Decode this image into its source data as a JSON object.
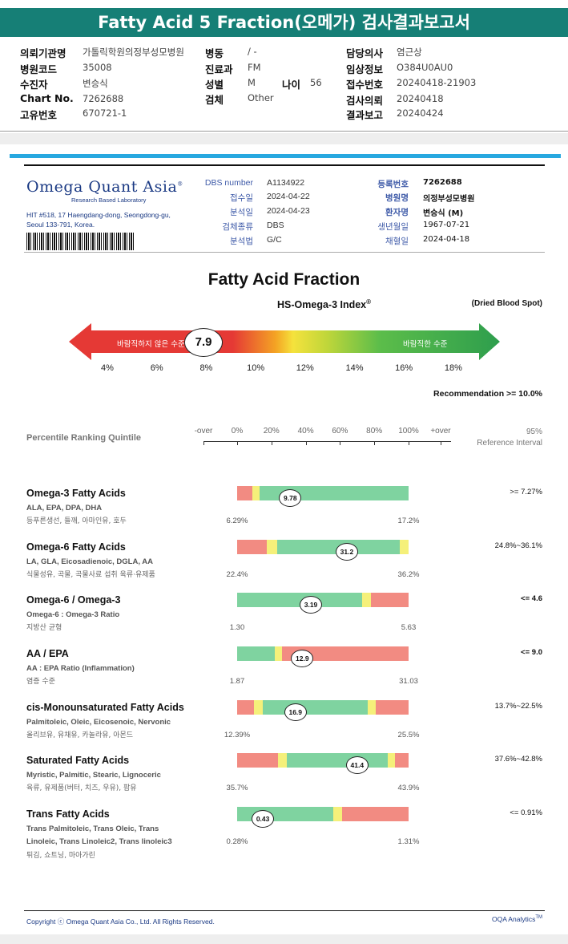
{
  "report_title": "Fatty Acid 5 Fraction(오메가) 검사결과보고서",
  "info": {
    "hospital_label": "의뢰기관명",
    "hospital_value": "가톨릭학원의정부성모병원",
    "code_label": "병원코드",
    "code_value": "35008",
    "patient_label": "수진자",
    "patient_value": "변승식",
    "chart_label": "Chart No.",
    "chart_value": "7262688",
    "id_label": "고유번호",
    "id_value": "670721-1",
    "ward_label": "병동",
    "ward_value": "/ -",
    "dept_label": "진료과",
    "dept_value": "FM",
    "sex_label": "성별",
    "sex_value": "M",
    "age_label": "나이",
    "age_value": "56",
    "specimen_label": "검체",
    "specimen_value": "Other",
    "doctor_label": "담당의사",
    "doctor_value": "염근상",
    "clinical_label": "임상정보",
    "clinical_value": "O384U0AU0",
    "receipt_label": "접수번호",
    "receipt_value": "20240418-21903",
    "request_label": "검사의뢰",
    "request_value": "20240418",
    "result_label": "결과보고",
    "result_value": "20240424"
  },
  "lab": {
    "logo": "Omega Quant Asia",
    "logo_mark": "®",
    "logo_sub": "Research Based Laboratory",
    "address1": "HIT #518, 17 Haengdang-dong, Seongdong-gu,",
    "address2": "Seoul 133-791, Korea."
  },
  "details_left": [
    {
      "label": "DBS number",
      "value": "A1134922"
    },
    {
      "label": "접수일",
      "value": "2024-04-22"
    },
    {
      "label": "분석일",
      "value": "2024-04-23"
    },
    {
      "label": "검체종류",
      "value": "DBS"
    },
    {
      "label": "분석법",
      "value": "G/C"
    }
  ],
  "details_right": [
    {
      "label": "등록번호",
      "value": "7262688"
    },
    {
      "label": "병원명",
      "value": "의정부성모병원"
    },
    {
      "label": "환자명",
      "value": "변승식 (M)"
    },
    {
      "label": "생년월일",
      "value": "1967-07-21"
    },
    {
      "label": "채혈일",
      "value": "2024-04-18"
    }
  ],
  "section_title": "Fatty Acid Fraction",
  "index": {
    "title": "HS-Omega-3 Index",
    "title_mark": "®",
    "specimen": "(Dried Blood Spot)",
    "value": 7.9,
    "value_label": "7.9",
    "bad_label": "바람직하지 않은 수준",
    "good_label": "바람직한 수준",
    "scale": [
      "4%",
      "6%",
      "8%",
      "10%",
      "12%",
      "14%",
      "16%",
      "18%"
    ],
    "recommendation": "Recommendation  >= 10.0%"
  },
  "percentile": {
    "heading": "Percentile Ranking Quintile",
    "ticks": [
      "-over",
      "0%",
      "20%",
      "40%",
      "60%",
      "80%",
      "100%",
      "+over"
    ],
    "ref_heading1": "95%",
    "ref_heading2": "Reference Interval"
  },
  "colors": {
    "red": "#f28b82",
    "yellow": "#f5f07a",
    "green": "#7fd3a0",
    "title_bg": "#167f76",
    "blue": "#27a8e0"
  },
  "fractions": [
    {
      "name": "Omega-3 Fatty Acids",
      "sub": "ALA, EPA, DPA, DHA",
      "korean": "등푸른생선, 들깨, 아마인유, 호두",
      "value": 9.78,
      "value_label": "9.78",
      "min": "6.29%",
      "max": "17.2%",
      "reference": ">= 7.27%",
      "ref_bold": false,
      "segments": [
        [
          "red",
          9
        ],
        [
          "yellow",
          4
        ],
        [
          "green",
          87
        ]
      ],
      "marker_pos": 31
    },
    {
      "name": "Omega-6 Fatty Acids",
      "sub": "LA, GLA, Eicosadienoic, DGLA, AA",
      "korean": "식물성유, 곡물, 곡물사료 섭취 육류·유제품",
      "value": 31.2,
      "value_label": "31.2",
      "min": "22.4%",
      "max": "36.2%",
      "reference": "24.8%~36.1%",
      "ref_bold": false,
      "segments": [
        [
          "red",
          17.5
        ],
        [
          "yellow",
          6
        ],
        [
          "green",
          71.5
        ],
        [
          "yellow",
          5
        ]
      ],
      "marker_pos": 64
    },
    {
      "name": "Omega-6 / Omega-3",
      "sub": "Omega-6 : Omega-3 Ratio",
      "korean": "지방산 균형",
      "value": 3.19,
      "value_label": "3.19",
      "min": "1.30",
      "max": "5.63",
      "reference": "<= 4.6",
      "ref_bold": true,
      "segments": [
        [
          "green",
          73
        ],
        [
          "yellow",
          5
        ],
        [
          "red",
          22
        ]
      ],
      "marker_pos": 43
    },
    {
      "name": "AA / EPA",
      "sub": "AA : EPA Ratio (Inflammation)",
      "korean": "염증 수준",
      "value": 12.9,
      "value_label": "12.9",
      "min": "1.87",
      "max": "31.03",
      "reference": "<= 9.0",
      "ref_bold": true,
      "segments": [
        [
          "green",
          22
        ],
        [
          "yellow",
          4
        ],
        [
          "red",
          74
        ]
      ],
      "marker_pos": 38
    },
    {
      "name": "cis-Monounsaturated Fatty Acids",
      "sub": "Palmitoleic, Oleic, Eicosenoic, Nervonic",
      "korean": "올리브유, 유채유, 카놀라유, 아몬드",
      "value": 16.9,
      "value_label": "16.9",
      "min": "12.39%",
      "max": "25.5%",
      "reference": "13.7%~22.5%",
      "ref_bold": false,
      "segments": [
        [
          "red",
          10
        ],
        [
          "yellow",
          5
        ],
        [
          "green",
          61
        ],
        [
          "yellow",
          5
        ],
        [
          "red",
          19
        ]
      ],
      "marker_pos": 34
    },
    {
      "name": "Saturated Fatty Acids",
      "sub": "Myristic, Palmitic, Stearic, Lignoceric",
      "korean": "육류, 유제품(버터, 치즈, 우유), 팜유",
      "value": 41.4,
      "value_label": "41.4",
      "min": "35.7%",
      "max": "43.9%",
      "reference": "37.6%~42.8%",
      "ref_bold": false,
      "segments": [
        [
          "red",
          24
        ],
        [
          "yellow",
          5
        ],
        [
          "green",
          59
        ],
        [
          "yellow",
          4
        ],
        [
          "red",
          8
        ]
      ],
      "marker_pos": 70
    },
    {
      "name": "Trans Fatty Acids",
      "sub": "Trans Palmitoleic, Trans Oleic, Trans\nLinoleic, Trans Linoleic2, Trans linoleic3",
      "korean": "튀김, 쇼트닝, 마아가린",
      "value": 0.43,
      "value_label": "0.43",
      "min": "0.28%",
      "max": "1.31%",
      "reference": "<= 0.91%",
      "ref_bold": false,
      "segments": [
        [
          "green",
          56
        ],
        [
          "yellow",
          5
        ],
        [
          "red",
          39
        ]
      ],
      "marker_pos": 15
    }
  ],
  "footer": {
    "copyright": "Copyright ⓒ Omega Quant Asia Co., Ltd.  All Rights Reserved.",
    "brand": "OQA Analytics",
    "brand_mark": "TM"
  }
}
